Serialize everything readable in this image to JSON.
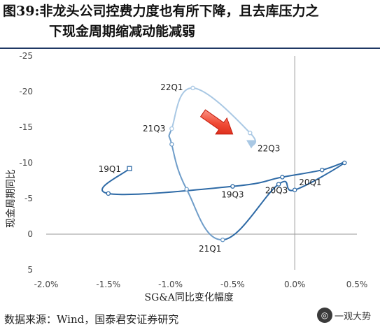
{
  "title": {
    "line1": "图39:非龙头公司控费力度也有所下降，且去库压力之",
    "line2": "下现金周期缩减动能减弱"
  },
  "source": "数据来源：Wind，国泰君安证券研究",
  "watermark": {
    "text": "一观大势",
    "icon": "wechat-icon"
  },
  "colors": {
    "old": "#2e6aa6",
    "mid": "#6f9dc9",
    "new": "#a9c8e4",
    "arrow": "#e8301e",
    "axis": "#999999"
  },
  "chart_data": {
    "type": "line",
    "xlabel": "SG&A同比变化幅度",
    "ylabel": "现金周期同比",
    "xlim": [
      -2.0,
      0.5
    ],
    "ylim": [
      5,
      -25
    ],
    "x_ticks": [
      "-2.0%",
      "-1.5%",
      "-1.0%",
      "-0.5%",
      "0.0%",
      "0.5%"
    ],
    "x_tick_values": [
      -2.0,
      -1.5,
      -1.0,
      -0.5,
      0.0,
      0.5
    ],
    "y_ticks": [
      "-25",
      "-20",
      "-15",
      "-10",
      "-5",
      "0",
      "5"
    ],
    "y_tick_values": [
      -25,
      -20,
      -15,
      -10,
      -5,
      0,
      5
    ],
    "grid": false,
    "zero_lines": true,
    "series": [
      {
        "points": [
          {
            "x": -1.33,
            "y": -9.2,
            "label": "19Q1"
          },
          {
            "x": -1.5,
            "y": -5.7,
            "label": ""
          },
          {
            "x": -0.5,
            "y": -6.7,
            "label": "19Q3"
          },
          {
            "x": -0.1,
            "y": -8.0,
            "label": ""
          },
          {
            "x": 0.22,
            "y": -9.0,
            "label": ""
          },
          {
            "x": 0.4,
            "y": -10.0,
            "label": ""
          },
          {
            "x": 0.0,
            "y": -6.2,
            "label": "20Q1"
          },
          {
            "x": -0.13,
            "y": -7.0,
            "label": "20Q3"
          },
          {
            "x": -0.58,
            "y": 0.8,
            "label": "21Q1"
          },
          {
            "x": -0.87,
            "y": -6.3,
            "label": ""
          },
          {
            "x": -0.99,
            "y": -12.6,
            "label": ""
          },
          {
            "x": -0.99,
            "y": -14.8,
            "label": "21Q3"
          },
          {
            "x": -0.82,
            "y": -20.5,
            "label": "22Q1"
          },
          {
            "x": -0.36,
            "y": -14.2,
            "label": ""
          },
          {
            "x": -0.35,
            "y": -12.2,
            "label": "22Q3"
          }
        ]
      }
    ],
    "annotation": "red arrow pointing down-right"
  }
}
